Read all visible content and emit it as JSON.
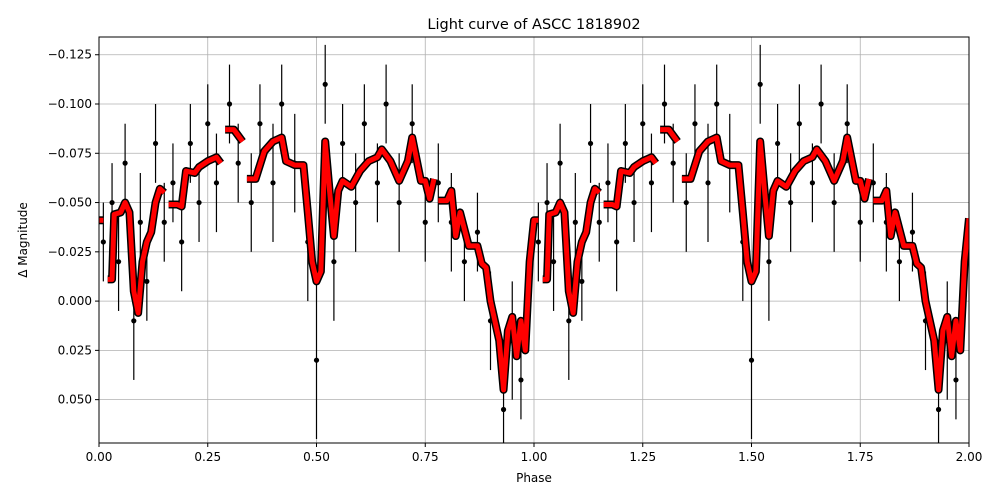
{
  "chart_data": {
    "type": "scatter",
    "title": "Light curve of ASCC 1818902",
    "xlabel": "Phase",
    "ylabel": "Δ Magnitude",
    "xlim": [
      0,
      2
    ],
    "ylim": [
      0.072,
      -0.134
    ],
    "xticks": [
      {
        "value": 0,
        "label": "0.00"
      },
      {
        "value": 0.25,
        "label": "0.25"
      },
      {
        "value": 0.5,
        "label": "0.50"
      },
      {
        "value": 0.75,
        "label": "0.75"
      },
      {
        "value": 1,
        "label": "1.00"
      },
      {
        "value": 1.25,
        "label": "1.25"
      },
      {
        "value": 1.5,
        "label": "1.50"
      },
      {
        "value": 1.75,
        "label": "1.75"
      },
      {
        "value": 2,
        "label": "2.00"
      }
    ],
    "yticks": [
      {
        "value": -0.125,
        "label": "−0.125"
      },
      {
        "value": -0.1,
        "label": "−0.100"
      },
      {
        "value": -0.075,
        "label": "−0.075"
      },
      {
        "value": -0.05,
        "label": "−0.050"
      },
      {
        "value": -0.025,
        "label": "−0.025"
      },
      {
        "value": 0,
        "label": "0.000"
      },
      0.025,
      {
        "value": 0.05,
        "label": "0.050"
      }
    ],
    "grid": true,
    "points": {
      "color": "#000000",
      "x": [
        0.01,
        0.03,
        0.045,
        0.06,
        0.08,
        0.095,
        0.11,
        0.13,
        0.15,
        0.17,
        0.19,
        0.21,
        0.23,
        0.25,
        0.27,
        0.3,
        0.32,
        0.35,
        0.37,
        0.4,
        0.42,
        0.45,
        0.48,
        0.5,
        0.52,
        0.54,
        0.56,
        0.59,
        0.61,
        0.64,
        0.66,
        0.69,
        0.72,
        0.75,
        0.78,
        0.81,
        0.84,
        0.87,
        0.9,
        0.93,
        0.95,
        0.97,
        1.01,
        1.03,
        1.045,
        1.06,
        1.08,
        1.095,
        1.11,
        1.13,
        1.15,
        1.17,
        1.19,
        1.21,
        1.23,
        1.25,
        1.27,
        1.3,
        1.32,
        1.35,
        1.37,
        1.4,
        1.42,
        1.45,
        1.48,
        1.5,
        1.52,
        1.54,
        1.56,
        1.59,
        1.61,
        1.64,
        1.66,
        1.69,
        1.72,
        1.75,
        1.78,
        1.81,
        1.84,
        1.87,
        1.9,
        1.93,
        1.95,
        1.97
      ],
      "values": [
        -0.03,
        -0.05,
        -0.02,
        -0.07,
        0.01,
        -0.04,
        -0.01,
        -0.08,
        -0.04,
        -0.06,
        -0.03,
        -0.08,
        -0.05,
        -0.09,
        -0.06,
        -0.1,
        -0.07,
        -0.05,
        -0.09,
        -0.06,
        -0.1,
        -0.07,
        -0.03,
        0.03,
        -0.11,
        -0.02,
        -0.08,
        -0.05,
        -0.09,
        -0.06,
        -0.1,
        -0.05,
        -0.09,
        -0.04,
        -0.06,
        -0.04,
        -0.02,
        -0.035,
        0.01,
        0.055,
        0.02,
        0.04,
        -0.03,
        -0.05,
        -0.02,
        -0.07,
        0.01,
        -0.04,
        -0.01,
        -0.08,
        -0.04,
        -0.06,
        -0.03,
        -0.08,
        -0.05,
        -0.09,
        -0.06,
        -0.1,
        -0.07,
        -0.05,
        -0.09,
        -0.06,
        -0.1,
        -0.07,
        -0.03,
        0.03,
        -0.11,
        -0.02,
        -0.08,
        -0.05,
        -0.09,
        -0.06,
        -0.1,
        -0.05,
        -0.09,
        -0.04,
        -0.06,
        -0.04,
        -0.02,
        -0.035,
        0.01,
        0.055,
        0.02,
        0.04
      ],
      "errors": [
        0.02,
        0.02,
        0.025,
        0.02,
        0.03,
        0.025,
        0.02,
        0.02,
        0.02,
        0.02,
        0.025,
        0.02,
        0.02,
        0.02,
        0.025,
        0.02,
        0.02,
        0.025,
        0.02,
        0.03,
        0.02,
        0.025,
        0.03,
        0.04,
        0.02,
        0.03,
        0.02,
        0.025,
        0.02,
        0.02,
        0.02,
        0.025,
        0.02,
        0.02,
        0.02,
        0.025,
        0.02,
        0.02,
        0.025,
        0.02,
        0.03,
        0.02,
        0.02,
        0.02,
        0.025,
        0.02,
        0.03,
        0.025,
        0.02,
        0.02,
        0.02,
        0.02,
        0.025,
        0.02,
        0.02,
        0.02,
        0.025,
        0.02,
        0.02,
        0.025,
        0.02,
        0.03,
        0.02,
        0.025,
        0.03,
        0.04,
        0.02,
        0.03,
        0.02,
        0.025,
        0.02,
        0.02,
        0.02,
        0.025,
        0.02,
        0.02,
        0.02,
        0.025,
        0.02,
        0.02,
        0.025,
        0.02,
        0.03,
        0.02
      ]
    },
    "binned": {
      "color": "#ff0000",
      "x": [
        0,
        0.01,
        0.015,
        0.02,
        0.03,
        0.035,
        0.05,
        0.06,
        0.07,
        0.08,
        0.09,
        0.1,
        0.11,
        0.12,
        0.13,
        0.14,
        0.15,
        0.155,
        0.16,
        0.18,
        0.19,
        0.2,
        0.22,
        0.23,
        0.25,
        0.27,
        0.28,
        0.285,
        0.29,
        0.31,
        0.33,
        0.335,
        0.34,
        0.36,
        0.38,
        0.4,
        0.42,
        0.43,
        0.45,
        0.47,
        0.48,
        0.49,
        0.5,
        0.51,
        0.52,
        0.53,
        0.54,
        0.55,
        0.56,
        0.58,
        0.6,
        0.62,
        0.64,
        0.65,
        0.67,
        0.69,
        0.71,
        0.72,
        0.74,
        0.75,
        0.76,
        0.77,
        0.775,
        0.78,
        0.8,
        0.81,
        0.82,
        0.83,
        0.85,
        0.87,
        0.88,
        0.89,
        0.9,
        0.92,
        0.93,
        0.94,
        0.95,
        0.96,
        0.97,
        0.98,
        0.99,
        1.0,
        1.01,
        1.015,
        1.02,
        1.03,
        1.035,
        1.05,
        1.06,
        1.07,
        1.08,
        1.09,
        1.1,
        1.11,
        1.12,
        1.13,
        1.14,
        1.15,
        1.155,
        1.16,
        1.18,
        1.19,
        1.2,
        1.22,
        1.23,
        1.25,
        1.27,
        1.28,
        1.285,
        1.29,
        1.31,
        1.33,
        1.335,
        1.34,
        1.36,
        1.38,
        1.4,
        1.42,
        1.43,
        1.45,
        1.47,
        1.48,
        1.49,
        1.5,
        1.51,
        1.52,
        1.53,
        1.54,
        1.55,
        1.56,
        1.58,
        1.6,
        1.62,
        1.64,
        1.65,
        1.67,
        1.69,
        1.71,
        1.72,
        1.74,
        1.75,
        1.76,
        1.77,
        1.775,
        1.78,
        1.8,
        1.81,
        1.82,
        1.83,
        1.85,
        1.87,
        1.88,
        1.89,
        1.9,
        1.92,
        1.93,
        1.94,
        1.95,
        1.96,
        1.97,
        1.98,
        1.99,
        2.0
      ],
      "values": [
        -0.041,
        -0.041,
        null,
        -0.011,
        -0.011,
        -0.044,
        -0.045,
        -0.05,
        -0.045,
        -0.005,
        0.006,
        -0.02,
        -0.03,
        -0.035,
        -0.05,
        -0.057,
        -0.055,
        null,
        -0.049,
        -0.049,
        -0.048,
        -0.066,
        -0.065,
        -0.068,
        -0.071,
        -0.073,
        -0.07,
        null,
        -0.087,
        -0.087,
        -0.081,
        null,
        -0.062,
        -0.062,
        -0.076,
        -0.081,
        -0.083,
        -0.071,
        -0.069,
        -0.069,
        -0.045,
        -0.02,
        -0.01,
        -0.015,
        -0.081,
        -0.056,
        -0.033,
        -0.056,
        -0.061,
        -0.058,
        -0.066,
        -0.071,
        -0.073,
        -0.077,
        -0.071,
        -0.061,
        -0.071,
        -0.083,
        -0.061,
        -0.061,
        -0.052,
        -0.062,
        null,
        -0.051,
        -0.051,
        -0.056,
        -0.033,
        -0.045,
        -0.028,
        -0.028,
        -0.019,
        -0.017,
        0.0,
        0.02,
        0.045,
        0.015,
        0.008,
        0.028,
        0.01,
        0.025,
        -0.02,
        -0.041,
        -0.041,
        null,
        -0.011,
        -0.011,
        -0.044,
        -0.045,
        -0.05,
        -0.045,
        -0.005,
        0.006,
        -0.02,
        -0.03,
        -0.035,
        -0.05,
        -0.057,
        -0.055,
        null,
        -0.049,
        -0.049,
        -0.048,
        -0.066,
        -0.065,
        -0.068,
        -0.071,
        -0.073,
        -0.07,
        null,
        -0.087,
        -0.087,
        -0.081,
        null,
        -0.062,
        -0.062,
        -0.076,
        -0.081,
        -0.083,
        -0.071,
        -0.069,
        -0.069,
        -0.045,
        -0.02,
        -0.01,
        -0.015,
        -0.081,
        -0.056,
        -0.033,
        -0.056,
        -0.061,
        -0.058,
        -0.066,
        -0.071,
        -0.073,
        -0.077,
        -0.071,
        -0.061,
        -0.071,
        -0.083,
        -0.061,
        -0.061,
        -0.052,
        -0.062,
        null,
        -0.051,
        -0.051,
        -0.056,
        -0.033,
        -0.045,
        -0.028,
        -0.028,
        -0.019,
        -0.017,
        0.0,
        0.02,
        0.045,
        0.015,
        0.008,
        0.028,
        0.01,
        0.025,
        -0.02,
        -0.042
      ]
    }
  }
}
